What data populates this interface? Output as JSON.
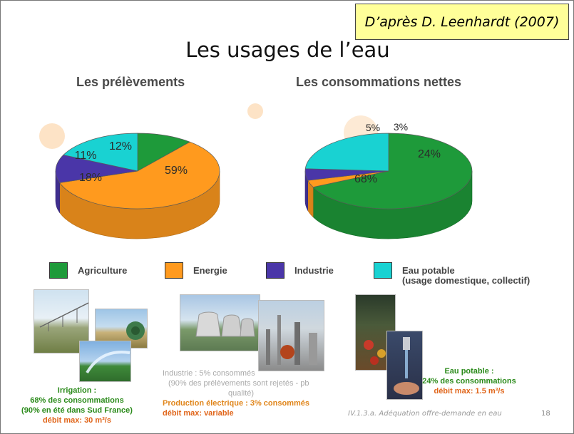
{
  "credit": "D’après D. Leenhardt (2007)",
  "title": "Les usages de l’eau",
  "colors": {
    "agriculture": "#1e9a3a",
    "energie": "#ff9a1e",
    "industrie": "#4a36a8",
    "eau_potable": "#19d2d2"
  },
  "charts": {
    "prelevements_title": "Les prélèvements",
    "consommations_title": "Les consommations nettes"
  },
  "chart_data": [
    {
      "type": "pie",
      "title": "Les prélèvements",
      "categories": [
        "Agriculture",
        "Energie",
        "Industrie",
        "Eau potable"
      ],
      "values": [
        11,
        59,
        12,
        18
      ],
      "labels": [
        "11%",
        "59%",
        "12%",
        "18%"
      ]
    },
    {
      "type": "pie",
      "title": "Les consommations nettes",
      "categories": [
        "Agriculture",
        "Energie",
        "Industrie",
        "Eau potable"
      ],
      "values": [
        68,
        3,
        5,
        24
      ],
      "labels": [
        "68%",
        "3%",
        "5%",
        "24%"
      ]
    }
  ],
  "legend": [
    {
      "label": "Agriculture",
      "color_key": "agriculture"
    },
    {
      "label": "Energie",
      "color_key": "energie"
    },
    {
      "label": "Industrie",
      "color_key": "industrie"
    },
    {
      "label": "Eau potable",
      "sub": "(usage domestique, collectif)",
      "color_key": "eau_potable"
    }
  ],
  "captions": {
    "irrigation": {
      "l1": "Irrigation :",
      "l2": "68% des consommations",
      "l3": "(90% en été dans  Sud France)",
      "l4": "débit max: 30 m³/s"
    },
    "industrie": {
      "l1": "Industrie : 5% consommés",
      "l2": "(90% des prélèvements sont rejetés - pb",
      "l3": "qualité)",
      "l4": "Production électrique : 3% consommés",
      "l5": "débit max: variable"
    },
    "eau_potable": {
      "l1": "Eau potable :",
      "l2": "24% des consommations",
      "l3": "débit max: 1.5 m³/s"
    }
  },
  "footer": "IV.1.3.a. Adéquation offre-demande en eau",
  "page_number": "18"
}
